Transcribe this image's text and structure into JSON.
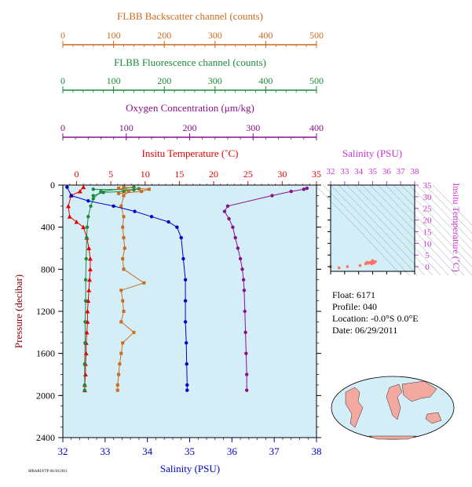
{
  "colors": {
    "backscatter": "#cc6a1f",
    "fluorescence": "#1a8a3a",
    "oxygen": "#8a0f8a",
    "temperature": "#e60000",
    "salinity_profile": "#0000cc",
    "salinity_ts": "#cc33cc",
    "plot_bg": "#d4eef8",
    "ts_bg": "#d4eef8",
    "land": "#f4a9a0",
    "ocean": "#d4eef8"
  },
  "info": {
    "float": "Float:  6171",
    "profile": "Profile:  040",
    "location": "Location:  -0.0°S   0.0°E",
    "date": "Date:  06/29/2011"
  },
  "footer_note": "MBARI/FTP 06/30/2011",
  "chart_data": [
    {
      "type": "line",
      "ylabel": "Pressure (decibar)",
      "ylim": [
        2400,
        0
      ],
      "yticks": [
        "0",
        "400",
        "800",
        "1200",
        "1600",
        "2000",
        "2400"
      ],
      "legend": "none",
      "axes": {
        "backscatter": {
          "label": "FLBB Backscatter channel (counts)",
          "lim": [
            0,
            500
          ],
          "ticks": [
            "0",
            "100",
            "200",
            "300",
            "400",
            "500"
          ]
        },
        "fluorescence": {
          "label": "FLBB Fluorescence channel (counts)",
          "lim": [
            0,
            500
          ],
          "ticks": [
            "0",
            "100",
            "200",
            "300",
            "400",
            "500"
          ]
        },
        "oxygen": {
          "label": "Oxygen Concentration (μm/kg)",
          "lim": [
            0,
            400
          ],
          "ticks": [
            "0",
            "100",
            "200",
            "300",
            "400"
          ]
        },
        "temperature": {
          "label": "Insitu Temperature (˚C)",
          "lim": [
            -2,
            35
          ],
          "ticks": [
            "0",
            "5",
            "10",
            "15",
            "20",
            "25",
            "30",
            "35"
          ]
        },
        "salinity": {
          "label": "Salinity (PSU)",
          "lim": [
            32,
            38
          ],
          "ticks": [
            "32",
            "33",
            "34",
            "35",
            "36",
            "37",
            "38"
          ]
        }
      },
      "series": [
        {
          "key": "temperature",
          "axis": "temperature",
          "marker": "triangle",
          "points": [
            [
              1.0,
              20
            ],
            [
              0.5,
              60
            ],
            [
              -0.8,
              100
            ],
            [
              -1.2,
              200
            ],
            [
              -1.0,
              300
            ],
            [
              0.0,
              350
            ],
            [
              1.0,
              400
            ],
            [
              1.5,
              500
            ],
            [
              1.8,
              600
            ],
            [
              2.0,
              700
            ],
            [
              2.0,
              800
            ],
            [
              1.9,
              900
            ],
            [
              1.8,
              1000
            ],
            [
              1.7,
              1100
            ],
            [
              1.6,
              1200
            ],
            [
              1.6,
              1300
            ],
            [
              1.5,
              1400
            ],
            [
              1.4,
              1500
            ],
            [
              1.4,
              1600
            ],
            [
              1.3,
              1700
            ],
            [
              1.3,
              1800
            ],
            [
              1.2,
              1900
            ],
            [
              1.2,
              1950
            ]
          ]
        },
        {
          "key": "fluorescence",
          "axis": "fluorescence",
          "marker": "circle",
          "points": [
            [
              140,
              20
            ],
            [
              75,
              60
            ],
            [
              60,
              130
            ],
            [
              55,
              200
            ],
            [
              50,
              300
            ],
            [
              48,
              400
            ],
            [
              47,
              500
            ],
            [
              46,
              700
            ],
            [
              45,
              900
            ],
            [
              45,
              1100
            ],
            [
              44,
              1300
            ],
            [
              44,
              1500
            ],
            [
              43,
              1700
            ],
            [
              43,
              1900
            ],
            [
              43,
              1950
            ]
          ]
        },
        {
          "key": "fluorescence_top",
          "axis": "fluorescence",
          "marker": "circle",
          "points": [
            [
              60,
              40
            ],
            [
              140,
              45
            ],
            [
              150,
              35
            ],
            [
              120,
              60
            ],
            [
              80,
              70
            ],
            [
              60,
              100
            ]
          ]
        },
        {
          "key": "backscatter",
          "axis": "backscatter",
          "marker": "square",
          "points": [
            [
              110,
              30
            ],
            [
              130,
              60
            ],
            [
              120,
              100
            ],
            [
              115,
              200
            ],
            [
              120,
              300
            ],
            [
              118,
              400
            ],
            [
              120,
              500
            ],
            [
              122,
              600
            ],
            [
              118,
              700
            ],
            [
              120,
              800
            ],
            [
              160,
              930
            ],
            [
              115,
              1000
            ],
            [
              118,
              1100
            ],
            [
              120,
              1200
            ],
            [
              115,
              1300
            ],
            [
              140,
              1400
            ],
            [
              118,
              1500
            ],
            [
              115,
              1600
            ],
            [
              112,
              1700
            ],
            [
              110,
              1800
            ],
            [
              108,
              1900
            ],
            [
              108,
              1950
            ]
          ]
        },
        {
          "key": "backscatter_top",
          "axis": "backscatter",
          "marker": "square",
          "points": [
            [
              120,
              20
            ],
            [
              170,
              40
            ],
            [
              155,
              60
            ],
            [
              110,
              80
            ]
          ]
        },
        {
          "key": "oxygen",
          "axis": "oxygen",
          "marker": "circle",
          "points": [
            [
              385,
              30
            ],
            [
              380,
              40
            ],
            [
              360,
              60
            ],
            [
              330,
              100
            ],
            [
              260,
              200
            ],
            [
              255,
              250
            ],
            [
              262,
              320
            ],
            [
              268,
              400
            ],
            [
              272,
              500
            ],
            [
              276,
              600
            ],
            [
              280,
              700
            ],
            [
              283,
              800
            ],
            [
              285,
              900
            ],
            [
              286,
              1000
            ],
            [
              287,
              1200
            ],
            [
              288,
              1400
            ],
            [
              289,
              1600
            ],
            [
              290,
              1800
            ],
            [
              290,
              1950
            ]
          ]
        },
        {
          "key": "salinity",
          "axis": "salinity",
          "marker": "circle",
          "points": [
            [
              32.1,
              20
            ],
            [
              32.2,
              100
            ],
            [
              32.6,
              150
            ],
            [
              33.2,
              200
            ],
            [
              33.7,
              250
            ],
            [
              34.1,
              300
            ],
            [
              34.5,
              350
            ],
            [
              34.7,
              400
            ],
            [
              34.8,
              500
            ],
            [
              34.85,
              700
            ],
            [
              34.9,
              900
            ],
            [
              34.9,
              1100
            ],
            [
              34.9,
              1300
            ],
            [
              34.92,
              1500
            ],
            [
              34.93,
              1700
            ],
            [
              34.94,
              1900
            ],
            [
              34.94,
              1950
            ]
          ]
        }
      ]
    },
    {
      "type": "scatter",
      "xlabel": "Salinity (PSU)",
      "ylabel": "Insitu Temperature (˚C)",
      "xlim": [
        32,
        38
      ],
      "ylim": [
        -2,
        35
      ],
      "xticks": [
        "32",
        "33",
        "34",
        "35",
        "36",
        "37",
        "38"
      ],
      "yticks": [
        "0",
        "5",
        "10",
        "15",
        "20",
        "25",
        "30",
        "35"
      ],
      "grid": false,
      "points": [
        [
          34.5,
          1.2
        ],
        [
          34.7,
          1.5
        ],
        [
          34.9,
          2.0
        ],
        [
          35.0,
          2.6
        ],
        [
          35.2,
          2.2
        ],
        [
          34.8,
          1.8
        ],
        [
          34.95,
          1.4
        ],
        [
          35.1,
          1.6
        ],
        [
          34.6,
          1.9
        ],
        [
          32.0,
          0.0
        ],
        [
          32.6,
          -0.5
        ],
        [
          33.2,
          0.0
        ],
        [
          34.1,
          0.5
        ],
        [
          34.94,
          1.2
        ]
      ]
    }
  ]
}
